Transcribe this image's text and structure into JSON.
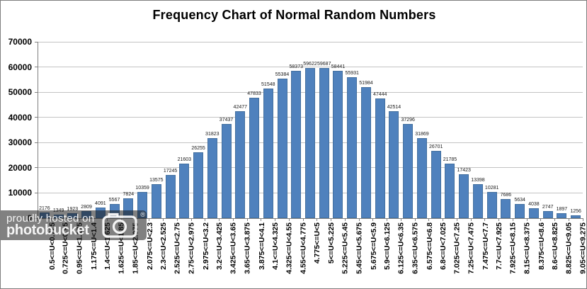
{
  "title": "Frequency Chart of Normal Random Numbers",
  "watermark": {
    "line1": "proudly hosted on",
    "line2": "photobucket",
    "registered": "®",
    "icon": "camera-icon"
  },
  "chart_data": {
    "type": "bar",
    "title": "Frequency Chart of Normal Random Numbers",
    "categories": [
      "0.5<=U<0.725",
      "0.725<=U<0.95",
      "0.95<=U<1.175",
      "1.175<=U<1.4",
      "1.4<=U<1.625",
      "1.625<=U<1.85",
      "1.85<=U<2.075",
      "2.075<=U<2.3",
      "2.3<=U<2.525",
      "2.525<=U<2.75",
      "2.75<=U<2.975",
      "2.975<=U<3.2",
      "3.2<=U<3.425",
      "3.425<=U<3.65",
      "3.65<=U<3.875",
      "3.875<=U<4.1",
      "4.1<=U<4.325",
      "4.325<=U<4.55",
      "4.55<=U<4.775",
      "4.775<=U<5",
      "5<=U<5.225",
      "5.225<=U<5.45",
      "5.45<=U<5.675",
      "5.675<=U<5.9",
      "5.9<=U<6.125",
      "6.125<=U<6.35",
      "6.35<=U<6.575",
      "6.575<=U<6.8",
      "6.8<=U<7.025",
      "7.025<=U<7.25",
      "7.25<=U<7.475",
      "7.475<=U<7.7",
      "7.7<=U<7.925",
      "7.925<=U<8.15",
      "8.15<=U<8.375",
      "8.375<=U<8.6",
      "8.6<=U<8.825",
      "8.825<=U<9.05",
      "9.05<=U<9.275"
    ],
    "values": [
      2176,
      1349,
      1923,
      2809,
      4091,
      5567,
      7824,
      10359,
      13575,
      17245,
      21603,
      26255,
      31823,
      37437,
      42477,
      47833,
      51548,
      55384,
      58373,
      59622,
      59687,
      58441,
      55931,
      51984,
      47444,
      42514,
      37296,
      31869,
      26701,
      21785,
      17423,
      13398,
      10281,
      7686,
      5634,
      4038,
      2747,
      1897,
      1256
    ],
    "value_labels_shown": true,
    "xlabel": "",
    "ylabel": "",
    "ylim": [
      0,
      70000
    ],
    "ytick_step": 10000,
    "yticks": [
      "0",
      "10000",
      "20000",
      "30000",
      "40000",
      "50000",
      "60000",
      "70000"
    ],
    "grid": true,
    "legend": "none",
    "bar_color": "#4f81bd",
    "gridline_color": "#c3c3c3",
    "axis_color": "#808080"
  }
}
